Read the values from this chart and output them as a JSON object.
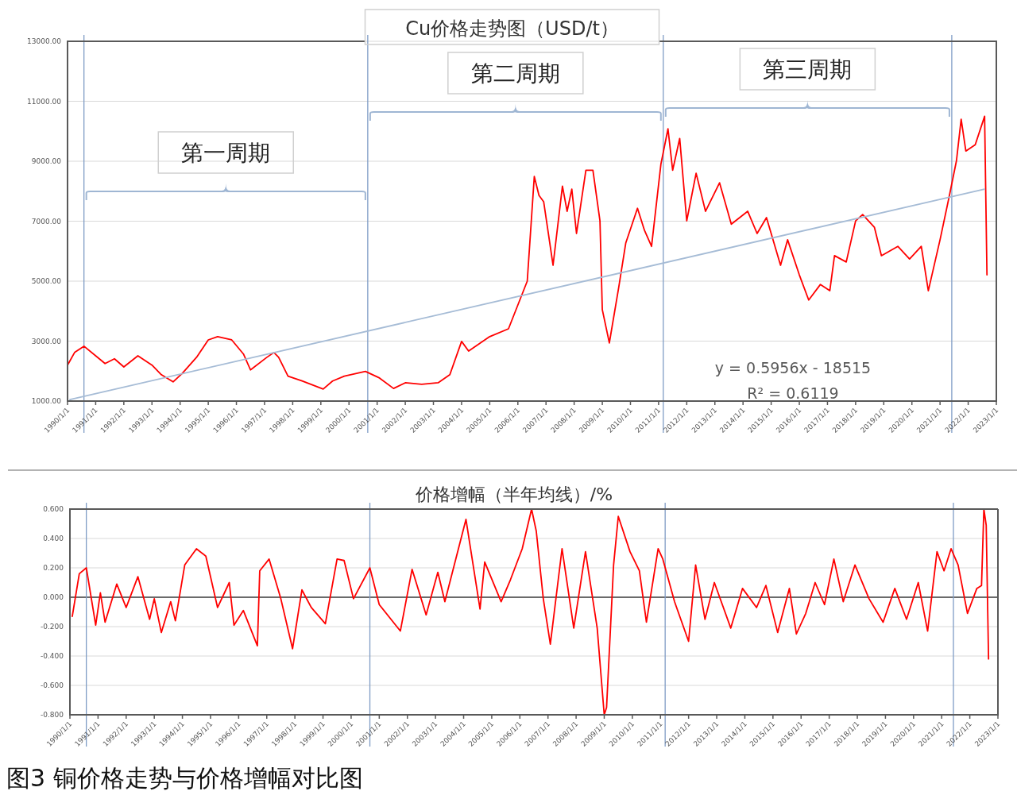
{
  "chart_data": [
    {
      "type": "line",
      "title": "Cu价格走势图（USD/t）",
      "grid": "y",
      "xlim": [
        "1990-01-01",
        "2023-01-01"
      ],
      "xticks": [
        {
          "value": "1990-01-01",
          "label": "1990/1/1"
        },
        {
          "value": "1991-01-01",
          "label": "1991/1/1"
        },
        {
          "value": "1992-01-01",
          "label": "1992/1/1"
        },
        {
          "value": "1993-01-01",
          "label": "1993/1/1"
        },
        {
          "value": "1994-01-01",
          "label": "1994/1/1"
        },
        {
          "value": "1995-01-01",
          "label": "1995/1/1"
        },
        {
          "value": "1996-01-01",
          "label": "1996/1/1"
        },
        {
          "value": "1997-01-01",
          "label": "1997/1/1"
        },
        {
          "value": "1998-01-01",
          "label": "1998/1/1"
        },
        {
          "value": "1999-01-01",
          "label": "1999/1/1"
        },
        {
          "value": "2000-01-01",
          "label": "2000/1/1"
        },
        {
          "value": "2001-01-01",
          "label": "2001/1/1"
        },
        {
          "value": "2002-01-01",
          "label": "2002/1/1"
        },
        {
          "value": "2003-01-01",
          "label": "2003/1/1"
        },
        {
          "value": "2004-01-01",
          "label": "2004/1/1"
        },
        {
          "value": "2005-01-01",
          "label": "2005/1/1"
        },
        {
          "value": "2006-01-01",
          "label": "2006/1/1"
        },
        {
          "value": "2007-01-01",
          "label": "2007/1/1"
        },
        {
          "value": "2008-01-01",
          "label": "2008/1/1"
        },
        {
          "value": "2009-01-01",
          "label": "2009/1/1"
        },
        {
          "value": "2010-01-01",
          "label": "2010/1/1"
        },
        {
          "value": "2011-01-01",
          "label": "2011/1/1"
        },
        {
          "value": "2012-01-01",
          "label": "2012/1/1"
        },
        {
          "value": "2013-01-01",
          "label": "2013/1/1"
        },
        {
          "value": "2014-01-01",
          "label": "2014/1/1"
        },
        {
          "value": "2015-01-01",
          "label": "2015/1/1"
        },
        {
          "value": "2016-01-01",
          "label": "2016/1/1"
        },
        {
          "value": "2017-01-01",
          "label": "2017/1/1"
        },
        {
          "value": "2018-01-01",
          "label": "2018/1/1"
        },
        {
          "value": "2019-01-01",
          "label": "2019/1/1"
        },
        {
          "value": "2020-01-01",
          "label": "2020/1/1"
        },
        {
          "value": "2021-01-01",
          "label": "2021/1/1"
        },
        {
          "value": "2022-01-01",
          "label": "2022/1/1"
        },
        {
          "value": "2023-01-01",
          "label": "2023/1/1"
        }
      ],
      "ylim": [
        1000,
        13000
      ],
      "yticks": [
        {
          "value": 1000,
          "label": "1000.00"
        },
        {
          "value": 3000,
          "label": "3000.00"
        },
        {
          "value": 5000,
          "label": "5000.00"
        },
        {
          "value": 7000,
          "label": "7000.00"
        },
        {
          "value": 9000,
          "label": "9000.00"
        },
        {
          "value": 11000,
          "label": "11000.00"
        },
        {
          "value": 13000,
          "label": "13000.00"
        }
      ],
      "ref_lines": [
        {
          "axis": "x",
          "value": "1990-08",
          "color": "#7f9cc5"
        },
        {
          "axis": "x",
          "value": "2000-09",
          "color": "#7f9cc5"
        },
        {
          "axis": "x",
          "value": "2011-03",
          "color": "#7f9cc5"
        },
        {
          "axis": "x",
          "value": "2021-06",
          "color": "#7f9cc5"
        }
      ],
      "annotations": [
        "y = 0.5956x - 18515",
        "R² = 0.6119",
        "第一周期",
        "第二周期",
        "第三周期"
      ],
      "series": [
        {
          "color": "#ff0000",
          "x": [
            "1990-01",
            "1990-04",
            "1990-08",
            "1991-01",
            "1991-05",
            "1991-09",
            "1992-01",
            "1992-07",
            "1993-01",
            "1993-05",
            "1993-10",
            "1994-02",
            "1994-08",
            "1995-01",
            "1995-05",
            "1995-11",
            "1996-04",
            "1996-07",
            "1997-02",
            "1997-05",
            "1997-07",
            "1997-11",
            "1998-05",
            "1999-02",
            "1999-06",
            "1999-11",
            "2000-08",
            "2001-02",
            "2001-08",
            "2002-01",
            "2002-08",
            "2003-03",
            "2003-08",
            "2004-01",
            "2004-04",
            "2005-01",
            "2005-09",
            "2006-05",
            "2006-08",
            "2006-10",
            "2006-12",
            "2007-04",
            "2007-08",
            "2007-10",
            "2007-12",
            "2008-02",
            "2008-06",
            "2008-09",
            "2008-12",
            "2009-01",
            "2009-04",
            "2009-08",
            "2009-11",
            "2010-04",
            "2010-07",
            "2010-10",
            "2011-02",
            "2011-05",
            "2011-07",
            "2011-10",
            "2012-01",
            "2012-05",
            "2012-09",
            "2013-03",
            "2013-08",
            "2014-03",
            "2014-07",
            "2014-11",
            "2015-05",
            "2015-08",
            "2016-01",
            "2016-05",
            "2016-10",
            "2017-02",
            "2017-04",
            "2017-09",
            "2018-01",
            "2018-04",
            "2018-09",
            "2018-12",
            "2019-07",
            "2019-12",
            "2020-05",
            "2020-08",
            "2021-01",
            "2021-05",
            "2021-08",
            "2021-10",
            "2021-12",
            "2022-04",
            "2022-08",
            "2022-09"
          ],
          "values": [
            2200,
            2620,
            2830,
            2510,
            2250,
            2410,
            2140,
            2510,
            2200,
            1880,
            1640,
            1930,
            2460,
            3040,
            3150,
            3040,
            2570,
            2040,
            2460,
            2620,
            2460,
            1830,
            1670,
            1400,
            1670,
            1830,
            1990,
            1770,
            1420,
            1610,
            1560,
            1610,
            1880,
            2990,
            2670,
            3150,
            3410,
            5000,
            8490,
            7860,
            7650,
            5530,
            8170,
            7330,
            8070,
            6590,
            8700,
            8700,
            7010,
            4050,
            2940,
            4790,
            6270,
            7430,
            6690,
            6160,
            8910,
            10080,
            8700,
            9760,
            7010,
            8600,
            7330,
            8280,
            6900,
            7330,
            6590,
            7120,
            5530,
            6380,
            5210,
            4370,
            4890,
            4680,
            5850,
            5640,
            7010,
            7220,
            6800,
            5850,
            6160,
            5740,
            6160,
            4680,
            6380,
            7860,
            9020,
            10400,
            9340,
            9550,
            10500,
            5210
          ]
        },
        {
          "color": "#a6bcd6",
          "x": [
            "1990-02",
            "2022-08"
          ],
          "values": [
            1050,
            8070
          ]
        }
      ]
    },
    {
      "type": "line",
      "title": "价格增幅（半年均线）/%",
      "grid": "y",
      "xlim": [
        "1990-01-01",
        "2023-01-01"
      ],
      "xticks": [
        {
          "value": "1990-01-01",
          "label": "1990/1/1"
        },
        {
          "value": "1991-01-01",
          "label": "1991/1/1"
        },
        {
          "value": "1992-01-01",
          "label": "1992/1/1"
        },
        {
          "value": "1993-01-01",
          "label": "1993/1/1"
        },
        {
          "value": "1994-01-01",
          "label": "1994/1/1"
        },
        {
          "value": "1995-01-01",
          "label": "1995/1/1"
        },
        {
          "value": "1996-01-01",
          "label": "1996/1/1"
        },
        {
          "value": "1997-01-01",
          "label": "1997/1/1"
        },
        {
          "value": "1998-01-01",
          "label": "1998/1/1"
        },
        {
          "value": "1999-01-01",
          "label": "1999/1/1"
        },
        {
          "value": "2000-01-01",
          "label": "2000/1/1"
        },
        {
          "value": "2001-01-01",
          "label": "2001/1/1"
        },
        {
          "value": "2002-01-01",
          "label": "2002/1/1"
        },
        {
          "value": "2003-01-01",
          "label": "2003/1/1"
        },
        {
          "value": "2004-01-01",
          "label": "2004/1/1"
        },
        {
          "value": "2005-01-01",
          "label": "2005/1/1"
        },
        {
          "value": "2006-01-01",
          "label": "2006/1/1"
        },
        {
          "value": "2007-01-01",
          "label": "2007/1/1"
        },
        {
          "value": "2008-01-01",
          "label": "2008/1/1"
        },
        {
          "value": "2009-01-01",
          "label": "2009/1/1"
        },
        {
          "value": "2010-01-01",
          "label": "2010/1/1"
        },
        {
          "value": "2011-01-01",
          "label": "2011/1/1"
        },
        {
          "value": "2012-01-01",
          "label": "2012/1/1"
        },
        {
          "value": "2013-01-01",
          "label": "2013/1/1"
        },
        {
          "value": "2014-01-01",
          "label": "2014/1/1"
        },
        {
          "value": "2015-01-01",
          "label": "2015/1/1"
        },
        {
          "value": "2016-01-01",
          "label": "2016/1/1"
        },
        {
          "value": "2017-01-01",
          "label": "2017/1/1"
        },
        {
          "value": "2018-01-01",
          "label": "2018/1/1"
        },
        {
          "value": "2019-01-01",
          "label": "2019/1/1"
        },
        {
          "value": "2020-01-01",
          "label": "2020/1/1"
        },
        {
          "value": "2021-01-01",
          "label": "2021/1/1"
        },
        {
          "value": "2022-01-01",
          "label": "2022/1/1"
        },
        {
          "value": "2023-01-01",
          "label": "2023/1/1"
        }
      ],
      "ylim": [
        -0.8,
        0.6
      ],
      "yticks": [
        {
          "value": -0.8,
          "label": "-0.800"
        },
        {
          "value": -0.6,
          "label": "-0.600"
        },
        {
          "value": -0.4,
          "label": "-0.400"
        },
        {
          "value": -0.2,
          "label": "-0.200"
        },
        {
          "value": 0,
          "label": "0.000"
        },
        {
          "value": 0.2,
          "label": "0.200"
        },
        {
          "value": 0.4,
          "label": "0.400"
        },
        {
          "value": 0.6,
          "label": "0.600"
        }
      ],
      "ref_lines": [
        {
          "axis": "y",
          "value": 0,
          "color": "#404040"
        },
        {
          "axis": "x",
          "value": "1990-08",
          "color": "#7f9cc5"
        },
        {
          "axis": "x",
          "value": "2000-09",
          "color": "#7f9cc5"
        },
        {
          "axis": "x",
          "value": "2011-03",
          "color": "#7f9cc5"
        },
        {
          "axis": "x",
          "value": "2021-06",
          "color": "#7f9cc5"
        }
      ],
      "annotations": [
        "图3 铜价格走势与价格增幅对比图"
      ],
      "series": [
        {
          "color": "#ff0000",
          "x": [
            "1990-02",
            "1990-05",
            "1990-08",
            "1990-12",
            "1991-02",
            "1991-04",
            "1991-09",
            "1992-01",
            "1992-06",
            "1992-11",
            "1993-01",
            "1993-04",
            "1993-08",
            "1993-10",
            "1994-02",
            "1994-07",
            "1994-11",
            "1995-04",
            "1995-09",
            "1995-11",
            "1996-03",
            "1996-09",
            "1996-10",
            "1997-02",
            "1997-07",
            "1997-12",
            "1998-04",
            "1998-08",
            "1999-02",
            "1999-07",
            "1999-10",
            "2000-02",
            "2000-09",
            "2001-01",
            "2001-10",
            "2002-03",
            "2002-09",
            "2003-02",
            "2003-05",
            "2004-02",
            "2004-08",
            "2004-10",
            "2005-05",
            "2005-09",
            "2006-02",
            "2006-06",
            "2006-08",
            "2006-11",
            "2007-02",
            "2007-07",
            "2007-12",
            "2008-05",
            "2008-10",
            "2009-01",
            "2009-02",
            "2009-05",
            "2009-07",
            "2009-12",
            "2010-04",
            "2010-07",
            "2010-12",
            "2011-02",
            "2011-07",
            "2012-01",
            "2012-04",
            "2012-08",
            "2012-12",
            "2013-07",
            "2013-12",
            "2014-06",
            "2014-10",
            "2015-03",
            "2015-08",
            "2015-11",
            "2016-03",
            "2016-07",
            "2016-11",
            "2017-03",
            "2017-07",
            "2017-12",
            "2018-06",
            "2018-12",
            "2019-05",
            "2019-10",
            "2020-03",
            "2020-07",
            "2020-11",
            "2021-02",
            "2021-05",
            "2021-08",
            "2021-12",
            "2022-04",
            "2022-06",
            "2022-07",
            "2022-08",
            "2022-09"
          ],
          "values": [
            -0.13,
            0.16,
            0.2,
            -0.19,
            0.03,
            -0.17,
            0.09,
            -0.07,
            0.14,
            -0.15,
            -0.01,
            -0.24,
            -0.03,
            -0.16,
            0.22,
            0.33,
            0.28,
            -0.07,
            0.1,
            -0.19,
            -0.09,
            -0.33,
            0.18,
            0.26,
            -0.01,
            -0.35,
            0.05,
            -0.07,
            -0.18,
            0.26,
            0.25,
            -0.01,
            0.2,
            -0.05,
            -0.23,
            0.19,
            -0.12,
            0.17,
            -0.03,
            0.53,
            -0.08,
            0.24,
            -0.03,
            0.12,
            0.33,
            0.6,
            0.45,
            -0.01,
            -0.32,
            0.33,
            -0.21,
            0.31,
            -0.21,
            -0.8,
            -0.75,
            0.22,
            0.55,
            0.31,
            0.18,
            -0.17,
            0.33,
            0.26,
            -0.03,
            -0.3,
            0.22,
            -0.15,
            0.1,
            -0.21,
            0.06,
            -0.07,
            0.08,
            -0.24,
            0.06,
            -0.25,
            -0.11,
            0.1,
            -0.05,
            0.26,
            -0.03,
            0.22,
            -0.01,
            -0.17,
            0.06,
            -0.15,
            0.1,
            -0.23,
            0.31,
            0.18,
            0.33,
            0.22,
            -0.11,
            0.06,
            0.08,
            0.6,
            0.49,
            -0.42
          ]
        }
      ]
    }
  ]
}
